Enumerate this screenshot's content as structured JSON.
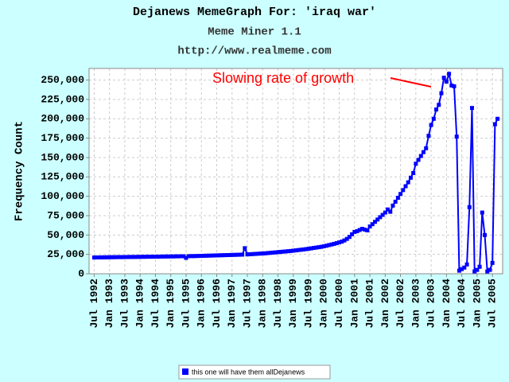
{
  "chart_data": {
    "type": "line",
    "title": "Dejanews MemeGraph For: 'iraq war'",
    "subtitle": "Meme Miner 1.1",
    "url": "http://www.realmeme.com",
    "y_label": "Frequency Count",
    "annotation": "Slowing rate of growth",
    "grid": true,
    "legend": "bottom",
    "xlim": [
      "1992-05",
      "2005-11"
    ],
    "xticks": [
      {
        "value": "1992-07",
        "label": "Jul 1992"
      },
      {
        "value": "1993-01",
        "label": "Jan 1993"
      },
      {
        "value": "1993-07",
        "label": "Jul 1993"
      },
      {
        "value": "1994-01",
        "label": "Jan 1994"
      },
      {
        "value": "1994-07",
        "label": "Jul 1994"
      },
      {
        "value": "1995-01",
        "label": "Jan 1995"
      },
      {
        "value": "1995-07",
        "label": "Jul 1995"
      },
      {
        "value": "1996-01",
        "label": "Jan 1996"
      },
      {
        "value": "1996-07",
        "label": "Jul 1996"
      },
      {
        "value": "1997-01",
        "label": "Jan 1997"
      },
      {
        "value": "1997-07",
        "label": "Jul 1997"
      },
      {
        "value": "1998-01",
        "label": "Jan 1998"
      },
      {
        "value": "1998-07",
        "label": "Jul 1998"
      },
      {
        "value": "1999-01",
        "label": "Jan 1999"
      },
      {
        "value": "1999-07",
        "label": "Jul 1999"
      },
      {
        "value": "2000-01",
        "label": "Jan 2000"
      },
      {
        "value": "2000-07",
        "label": "Jul 2000"
      },
      {
        "value": "2001-01",
        "label": "Jan 2001"
      },
      {
        "value": "2001-07",
        "label": "Jul 2001"
      },
      {
        "value": "2002-01",
        "label": "Jan 2002"
      },
      {
        "value": "2002-07",
        "label": "Jul 2002"
      },
      {
        "value": "2003-01",
        "label": "Jan 2003"
      },
      {
        "value": "2003-07",
        "label": "Jul 2003"
      },
      {
        "value": "2004-01",
        "label": "Jan 2004"
      },
      {
        "value": "2004-07",
        "label": "Jul 2004"
      },
      {
        "value": "2005-01",
        "label": "Jan 2005"
      },
      {
        "value": "2005-07",
        "label": "Jul 2005"
      }
    ],
    "ylim": [
      0,
      265000
    ],
    "yticks": [
      0,
      {
        "value": 25000,
        "label": "25,000"
      },
      {
        "value": 50000,
        "label": "50,000"
      },
      {
        "value": 75000,
        "label": "75,000"
      },
      {
        "value": 100000,
        "label": "100,000"
      },
      {
        "value": 125000,
        "label": "125,000"
      },
      {
        "value": 150000,
        "label": "150,000"
      },
      {
        "value": 175000,
        "label": "175,000"
      },
      {
        "value": 200000,
        "label": "200,000"
      },
      {
        "value": 225000,
        "label": "225,000"
      },
      {
        "value": 250000,
        "label": "250,000"
      }
    ],
    "x": [
      "1992-07",
      "1992-08",
      "1992-09",
      "1992-10",
      "1992-11",
      "1992-12",
      "1993-01",
      "1993-02",
      "1993-03",
      "1993-04",
      "1993-05",
      "1993-06",
      "1993-07",
      "1993-08",
      "1993-09",
      "1993-10",
      "1993-11",
      "1993-12",
      "1994-01",
      "1994-02",
      "1994-03",
      "1994-04",
      "1994-05",
      "1994-06",
      "1994-07",
      "1994-08",
      "1994-09",
      "1994-10",
      "1994-11",
      "1994-12",
      "1995-01",
      "1995-02",
      "1995-03",
      "1995-04",
      "1995-05",
      "1995-06",
      "1995-07",
      "1995-08",
      "1995-09",
      "1995-10",
      "1995-11",
      "1995-12",
      "1996-01",
      "1996-02",
      "1996-03",
      "1996-04",
      "1996-05",
      "1996-06",
      "1996-07",
      "1996-08",
      "1996-09",
      "1996-10",
      "1996-11",
      "1996-12",
      "1997-01",
      "1997-02",
      "1997-03",
      "1997-04",
      "1997-05",
      "1997-06",
      "1997-07",
      "1997-08",
      "1997-09",
      "1997-10",
      "1997-11",
      "1997-12",
      "1998-01",
      "1998-02",
      "1998-03",
      "1998-04",
      "1998-05",
      "1998-06",
      "1998-07",
      "1998-08",
      "1998-09",
      "1998-10",
      "1998-11",
      "1998-12",
      "1999-01",
      "1999-02",
      "1999-03",
      "1999-04",
      "1999-05",
      "1999-06",
      "1999-07",
      "1999-08",
      "1999-09",
      "1999-10",
      "1999-11",
      "1999-12",
      "2000-01",
      "2000-02",
      "2000-03",
      "2000-04",
      "2000-05",
      "2000-06",
      "2000-07",
      "2000-08",
      "2000-09",
      "2000-10",
      "2000-11",
      "2000-12",
      "2001-01",
      "2001-02",
      "2001-03",
      "2001-04",
      "2001-05",
      "2001-06",
      "2001-07",
      "2001-08",
      "2001-09",
      "2001-10",
      "2001-11",
      "2001-12",
      "2002-01",
      "2002-02",
      "2002-03",
      "2002-04",
      "2002-05",
      "2002-06",
      "2002-07",
      "2002-08",
      "2002-09",
      "2002-10",
      "2002-11",
      "2002-12",
      "2003-01",
      "2003-02",
      "2003-03",
      "2003-04",
      "2003-05",
      "2003-06",
      "2003-07",
      "2003-08",
      "2003-09",
      "2003-10",
      "2003-11",
      "2003-12",
      "2004-01",
      "2004-02",
      "2004-03",
      "2004-04",
      "2004-05",
      "2004-06",
      "2004-07",
      "2004-08",
      "2004-09",
      "2004-10",
      "2004-11",
      "2004-12",
      "2005-01",
      "2005-02",
      "2005-03",
      "2005-04",
      "2005-05",
      "2005-06",
      "2005-07",
      "2005-08",
      "2005-09"
    ],
    "series": [
      {
        "name": "this one will have them allDejanews",
        "color": "#0000ff",
        "values": [
          21000,
          21100,
          21100,
          21200,
          21200,
          21300,
          21300,
          21400,
          21400,
          21500,
          21500,
          21500,
          21600,
          21600,
          21700,
          21700,
          21700,
          21800,
          21800,
          21900,
          21900,
          22000,
          22000,
          22000,
          22100,
          22100,
          22200,
          22200,
          22300,
          22300,
          22400,
          22400,
          22500,
          22500,
          22600,
          22600,
          20500,
          22700,
          22800,
          22800,
          22900,
          23000,
          23100,
          23200,
          23300,
          23400,
          23500,
          23600,
          23700,
          23800,
          23900,
          24000,
          24100,
          24200,
          24300,
          24400,
          24500,
          24600,
          24700,
          33000,
          25000,
          25200,
          25400,
          25600,
          25800,
          26000,
          26200,
          26400,
          26700,
          27000,
          27300,
          27600,
          27900,
          28200,
          28500,
          28800,
          29100,
          29400,
          29800,
          30200,
          30600,
          31000,
          31400,
          31800,
          32300,
          32800,
          33300,
          33800,
          34300,
          34800,
          35500,
          36200,
          37000,
          37800,
          38600,
          39500,
          40500,
          41500,
          43000,
          45000,
          47500,
          51000,
          54000,
          55000,
          56500,
          58000,
          57000,
          56000,
          61000,
          64000,
          67000,
          70000,
          73000,
          76000,
          79000,
          83000,
          80000,
          88000,
          93000,
          98000,
          103000,
          108000,
          113000,
          118000,
          124000,
          130000,
          142000,
          147000,
          152000,
          157000,
          162000,
          178000,
          192000,
          200000,
          212000,
          218000,
          233000,
          253000,
          248000,
          258000,
          243000,
          242000,
          177000,
          4000,
          6000,
          8000,
          12000,
          86000,
          214000,
          3000,
          5000,
          9000,
          79000,
          50000,
          3000,
          5000,
          14000,
          193000,
          200000
        ]
      }
    ]
  }
}
